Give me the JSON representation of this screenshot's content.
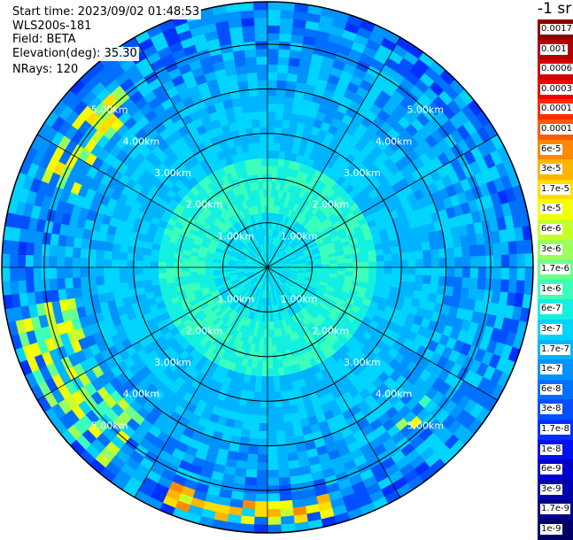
{
  "header": {
    "start_time": "Start time: 2023/09/02 01:48:53",
    "instrument": "WLS200s-181",
    "field": "Field: BETA",
    "elevation": "Elevation(deg): 35.30",
    "nrays": "NRays: 120"
  },
  "colorbar": {
    "title": "-1 sr",
    "levels": [
      {
        "label": "0.0017",
        "color": "#8b0000"
      },
      {
        "label": "0.001",
        "color": "#b20000"
      },
      {
        "label": "0.0006",
        "color": "#d40000"
      },
      {
        "label": "0.0003",
        "color": "#f20000"
      },
      {
        "label": "0.00017",
        "color": "#ff2a00"
      },
      {
        "label": "0.0001",
        "color": "#ff5a00"
      },
      {
        "label": "6e-5",
        "color": "#ff8a00"
      },
      {
        "label": "3e-5",
        "color": "#ffb400"
      },
      {
        "label": "1.7e-5",
        "color": "#ffde00"
      },
      {
        "label": "1e-5",
        "color": "#f4ff00"
      },
      {
        "label": "6e-6",
        "color": "#c8ff2a"
      },
      {
        "label": "3e-6",
        "color": "#9cff5a"
      },
      {
        "label": "1.7e-6",
        "color": "#6cff8a"
      },
      {
        "label": "1e-6",
        "color": "#3cffbc"
      },
      {
        "label": "6e-7",
        "color": "#14f0e0"
      },
      {
        "label": "3e-7",
        "color": "#00d4ff"
      },
      {
        "label": "1.7e-7",
        "color": "#00b4ff"
      },
      {
        "label": "1e-7",
        "color": "#0092ff"
      },
      {
        "label": "6e-8",
        "color": "#0070ff"
      },
      {
        "label": "3e-8",
        "color": "#0050ff"
      },
      {
        "label": "1.7e-8",
        "color": "#0030ff"
      },
      {
        "label": "1e-8",
        "color": "#0010f0"
      },
      {
        "label": "6e-9",
        "color": "#0000d0"
      },
      {
        "label": "3e-9",
        "color": "#0000ac"
      },
      {
        "label": "1.7e-9",
        "color": "#00008a"
      },
      {
        "label": "1e-9",
        "color": "#000068"
      }
    ]
  },
  "chart_data": {
    "type": "heatmap",
    "projection": "polar",
    "field": "BETA",
    "nrays": 120,
    "range_rings_km": [
      1,
      2,
      3,
      4,
      5
    ],
    "range_labels": [
      "1.00km",
      "2.00km",
      "3.00km",
      "4.00km",
      "5.00km"
    ],
    "azimuth_lines_deg": [
      0,
      30,
      60,
      90,
      120,
      150,
      180,
      210,
      240,
      270,
      300,
      330
    ],
    "max_range_km": 5.95,
    "background_value": "3e-7",
    "near_value": "1e-6",
    "high_value_regions": [
      {
        "azimuth_deg": [
          220,
          260
        ],
        "range_km": [
          4.3,
          5.7
        ],
        "value": "1e-5"
      },
      {
        "azimuth_deg": [
          290,
          320
        ],
        "range_km": [
          4.5,
          5.5
        ],
        "value": "1.7e-5"
      },
      {
        "azimuth_deg": [
          165,
          205
        ],
        "range_km": [
          5.2,
          5.7
        ],
        "value": "6e-5"
      },
      {
        "azimuth_deg": [
          130,
          140
        ],
        "range_km": [
          4.6,
          5.0
        ],
        "value": "1e-5"
      }
    ]
  }
}
